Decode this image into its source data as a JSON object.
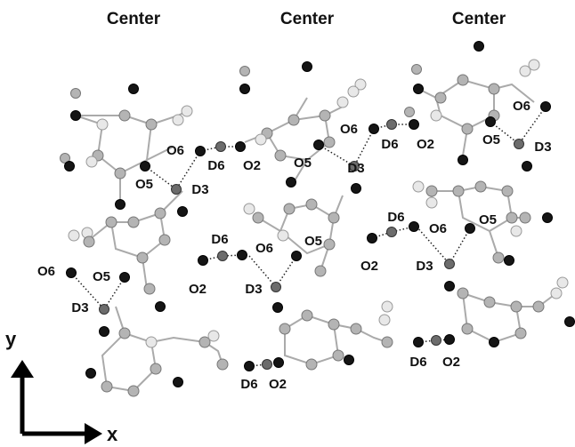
{
  "headers": [
    "Center",
    "Center",
    "Center"
  ],
  "labels": [
    "O6",
    "D6",
    "O2",
    "O5",
    "D3",
    "O6",
    "D6",
    "O2",
    "O5",
    "D3",
    "O6",
    "O5",
    "D3",
    "D6",
    "O6",
    "O5",
    "O2",
    "D3",
    "D6",
    "O6",
    "O5",
    "O2",
    "D3",
    "O6",
    "O5",
    "D3",
    "D6",
    "O2",
    "D6",
    "O2"
  ],
  "axes": {
    "y": "y",
    "x": "x"
  }
}
